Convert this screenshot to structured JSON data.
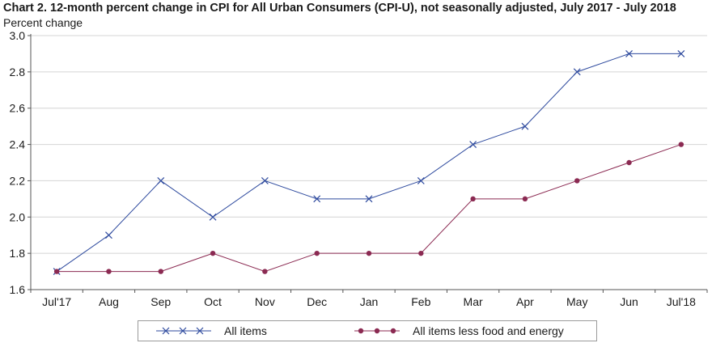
{
  "chart_data": {
    "type": "line",
    "title": "Chart 2. 12-month percent change in CPI for All Urban Consumers (CPI-U), not seasonally adjusted, July 2017 - July 2018",
    "ylabel": "Percent change",
    "xlabel": "",
    "categories": [
      "Jul'17",
      "Aug",
      "Sep",
      "Oct",
      "Nov",
      "Dec",
      "Jan",
      "Feb",
      "Mar",
      "Apr",
      "May",
      "Jun",
      "Jul'18"
    ],
    "ylim": [
      1.6,
      3.0
    ],
    "yticks": [
      "1.6",
      "1.8",
      "2.0",
      "2.2",
      "2.4",
      "2.6",
      "2.8",
      "3.0"
    ],
    "grid": "horizontal",
    "legend_position": "bottom",
    "series": [
      {
        "name": "All items",
        "color": "#2e4a9e",
        "marker": "x",
        "values": [
          1.7,
          1.9,
          2.2,
          2.0,
          2.2,
          2.1,
          2.1,
          2.2,
          2.4,
          2.5,
          2.8,
          2.9,
          2.9
        ]
      },
      {
        "name": "All items less food and energy",
        "color": "#8b2a52",
        "marker": "circle",
        "values": [
          1.7,
          1.7,
          1.7,
          1.8,
          1.7,
          1.8,
          1.8,
          1.8,
          2.1,
          2.1,
          2.2,
          2.3,
          2.4
        ]
      }
    ]
  }
}
